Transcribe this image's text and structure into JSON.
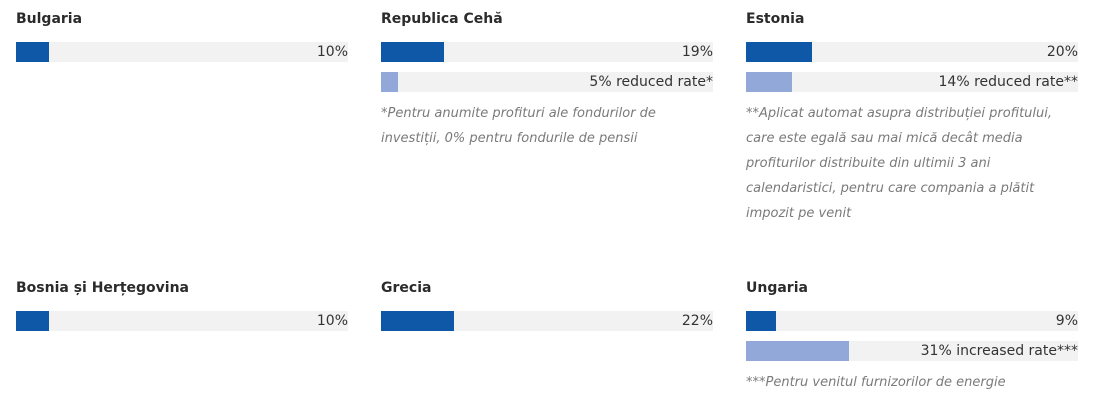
{
  "colors": {
    "primary": "#0f58a8",
    "secondary": "#91a8d9",
    "track": "#f2f2f2"
  },
  "chart_data": [
    {
      "type": "bar",
      "country": "Bulgaria",
      "bars": [
        {
          "value": 10,
          "label": "10%",
          "kind": "primary"
        }
      ],
      "note": ""
    },
    {
      "type": "bar",
      "country": "Republica Cehă",
      "bars": [
        {
          "value": 19,
          "label": "19%",
          "kind": "primary"
        },
        {
          "value": 5,
          "label": "5% reduced rate*",
          "kind": "secondary"
        }
      ],
      "note": "*Pentru anumite profituri ale fondurilor de investiții, 0% pentru fondurile de pensii"
    },
    {
      "type": "bar",
      "country": "Estonia",
      "bars": [
        {
          "value": 20,
          "label": "20%",
          "kind": "primary"
        },
        {
          "value": 14,
          "label": "14% reduced rate**",
          "kind": "secondary"
        }
      ],
      "note": "**Aplicat automat asupra distribuției profitului, care este egală sau mai mică decât media profiturilor distribuite din ultimii 3 ani calendaristici, pentru care compania a plătit impozit pe venit"
    },
    {
      "type": "bar",
      "country": "Bosnia și Herțegovina",
      "bars": [
        {
          "value": 10,
          "label": "10%",
          "kind": "primary"
        }
      ],
      "note": ""
    },
    {
      "type": "bar",
      "country": "Grecia",
      "bars": [
        {
          "value": 22,
          "label": "22%",
          "kind": "primary"
        }
      ],
      "note": ""
    },
    {
      "type": "bar",
      "country": "Ungaria",
      "bars": [
        {
          "value": 9,
          "label": "9%",
          "kind": "primary"
        },
        {
          "value": 31,
          "label": "31% increased rate***",
          "kind": "secondary"
        }
      ],
      "note": "***Pentru venitul furnizorilor de energie"
    }
  ]
}
